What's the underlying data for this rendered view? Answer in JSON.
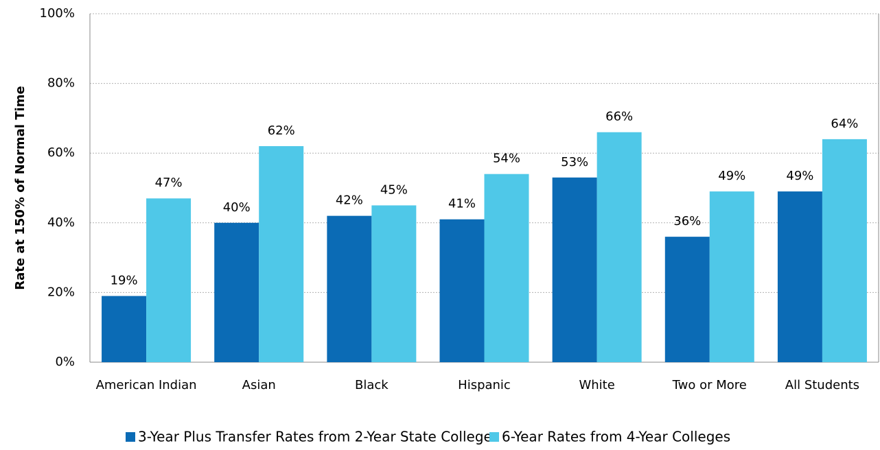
{
  "chart_data": {
    "type": "bar",
    "y_label": "Rate at 150% of Normal Time",
    "categories": [
      "American Indian",
      "Asian",
      "Black",
      "Hispanic",
      "White",
      "Two or More",
      "All Students"
    ],
    "series": [
      {
        "name": "3-Year Plus Transfer Rates from 2-Year State Colleges",
        "color": "#0b6bb5",
        "values": [
          19,
          40,
          42,
          41,
          53,
          36,
          49
        ],
        "value_labels": [
          "19%",
          "40%",
          "42%",
          "41%",
          "53%",
          "36%",
          "49%"
        ]
      },
      {
        "name": "6-Year Rates from 4-Year Colleges",
        "color": "#4fc8e8",
        "values": [
          47,
          62,
          45,
          54,
          66,
          49,
          64
        ],
        "value_labels": [
          "47%",
          "62%",
          "45%",
          "54%",
          "66%",
          "49%",
          "64%"
        ]
      }
    ],
    "ylim": [
      0,
      100
    ],
    "yticks": [
      {
        "value": 0,
        "label": "0%"
      },
      {
        "value": 20,
        "label": "20%"
      },
      {
        "value": 40,
        "label": "40%"
      },
      {
        "value": 60,
        "label": "60%"
      },
      {
        "value": 80,
        "label": "80%"
      },
      {
        "value": 100,
        "label": "100%"
      }
    ],
    "grid": true,
    "legend": "bottom"
  }
}
